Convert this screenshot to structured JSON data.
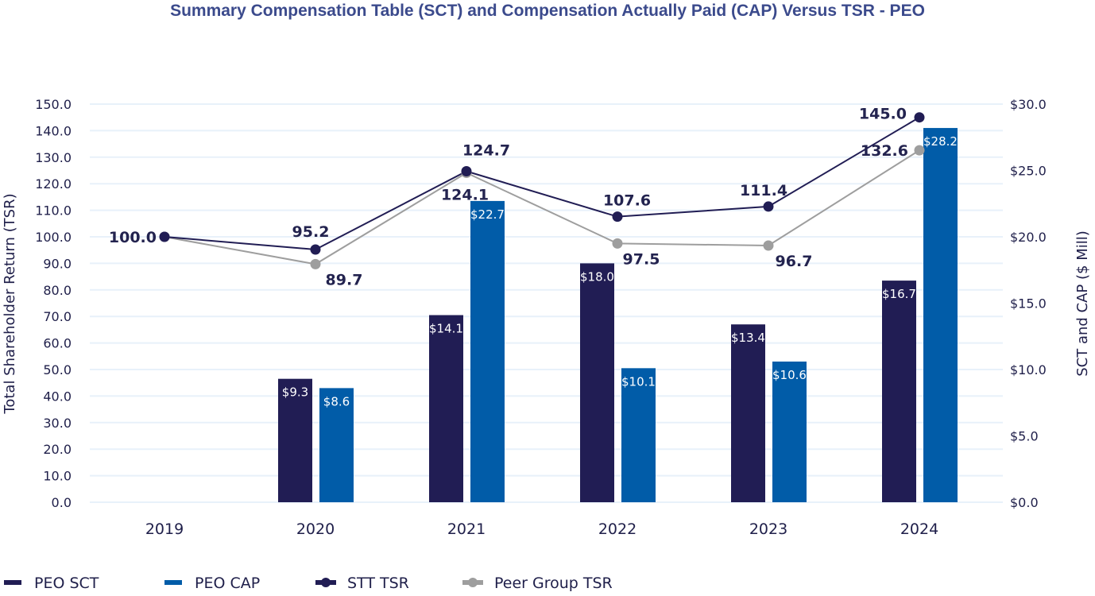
{
  "chart_data": {
    "type": "bar",
    "title": "Summary Compensation Table (SCT) and Compensation Actually Paid (CAP) Versus TSR - PEO",
    "categories": [
      "2019",
      "2020",
      "2021",
      "2022",
      "2023",
      "2024"
    ],
    "left_axis": {
      "label": "Total Shareholder Return (TSR)",
      "ylim": [
        0,
        150
      ],
      "ticks": [
        "0.0",
        "10.0",
        "20.0",
        "30.0",
        "40.0",
        "50.0",
        "60.0",
        "70.0",
        "80.0",
        "90.0",
        "100.0",
        "110.0",
        "120.0",
        "130.0",
        "140.0",
        "150.0"
      ]
    },
    "right_axis": {
      "label": "SCT and CAP ($ Mill)",
      "ylim": [
        0,
        30
      ],
      "ticks": [
        "$0.0",
        "$5.0",
        "$10.0",
        "$15.0",
        "$20.0",
        "$25.0",
        "$30.0"
      ]
    },
    "grid": true,
    "legend_position": "bottom-left",
    "series": [
      {
        "name": "PEO SCT",
        "kind": "bar",
        "axis": "right",
        "color": "#211d54",
        "values": [
          null,
          9.3,
          14.1,
          18.0,
          13.4,
          16.7
        ],
        "labels": [
          "",
          "$9.3",
          "$14.1",
          "$18.0",
          "$13.4",
          "$16.7"
        ]
      },
      {
        "name": "PEO CAP",
        "kind": "bar",
        "axis": "right",
        "color": "#015ca8",
        "values": [
          null,
          8.6,
          22.7,
          10.1,
          10.6,
          28.2
        ],
        "labels": [
          "",
          "$8.6",
          "$22.7",
          "$10.1",
          "$10.6",
          "$28.2"
        ]
      },
      {
        "name": "STT TSR",
        "kind": "line",
        "axis": "left",
        "color": "#211d54",
        "values": [
          100.0,
          95.2,
          124.7,
          107.6,
          111.4,
          145.0
        ],
        "labels": [
          "100.0",
          "95.2",
          "124.7",
          "107.6",
          "111.4",
          "145.0"
        ]
      },
      {
        "name": "Peer Group TSR",
        "kind": "line",
        "axis": "left",
        "color": "#9e9e9e",
        "values": [
          100.0,
          89.7,
          124.1,
          97.5,
          96.7,
          132.6
        ],
        "labels": [
          "",
          "89.7",
          "124.1",
          "97.5",
          "96.7",
          "132.6"
        ]
      }
    ]
  }
}
